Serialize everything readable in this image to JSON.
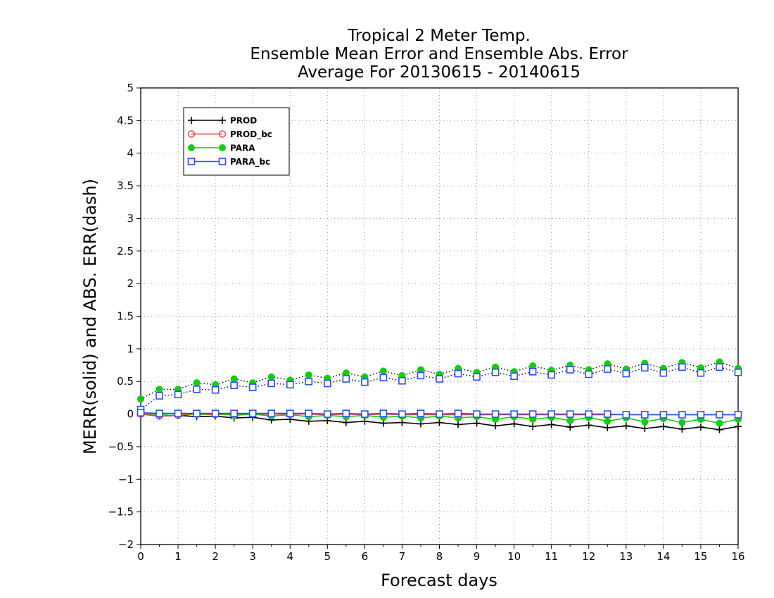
{
  "chart_data": {
    "type": "line",
    "title": [
      "Tropical 2 Meter Temp.",
      "Ensemble Mean Error and Ensemble Abs. Error",
      "Average For 20130615 - 20140615"
    ],
    "xlabel": "Forecast days",
    "ylabel": "MERR(solid) and ABS. ERR(dash)",
    "xlim": [
      0,
      16
    ],
    "ylim": [
      -2,
      5
    ],
    "x_ticks": [
      "0",
      "1",
      "2",
      "3",
      "4",
      "5",
      "6",
      "7",
      "8",
      "9",
      "10",
      "11",
      "12",
      "13",
      "14",
      "15",
      "16"
    ],
    "y_ticks": [
      "5",
      "4.5",
      "4",
      "3.5",
      "3",
      "2.5",
      "2",
      "1.5",
      "1",
      "0.5",
      "0",
      "−0.5",
      "−1",
      "−1.5",
      "−2"
    ],
    "y_tick_values": [
      5,
      4.5,
      4,
      3.5,
      3,
      2.5,
      2,
      1.5,
      1,
      0.5,
      0,
      -0.5,
      -1,
      -1.5,
      -2
    ],
    "grid": true,
    "legend_position": "top-left",
    "x": [
      0,
      0.5,
      1,
      1.5,
      2,
      2.5,
      3,
      3.5,
      4,
      4.5,
      5,
      5.5,
      6,
      6.5,
      7,
      7.5,
      8,
      8.5,
      9,
      9.5,
      10,
      10.5,
      11,
      11.5,
      12,
      12.5,
      13,
      13.5,
      14,
      14.5,
      15,
      15.5,
      16
    ],
    "series": [
      {
        "name": "PROD",
        "color": "#000000",
        "marker": "plus",
        "style": "solid",
        "values": [
          0.0,
          -0.03,
          -0.02,
          -0.04,
          -0.03,
          -0.06,
          -0.05,
          -0.09,
          -0.08,
          -0.11,
          -0.1,
          -0.13,
          -0.11,
          -0.14,
          -0.13,
          -0.15,
          -0.13,
          -0.16,
          -0.14,
          -0.18,
          -0.15,
          -0.19,
          -0.16,
          -0.2,
          -0.17,
          -0.21,
          -0.18,
          -0.22,
          -0.19,
          -0.23,
          -0.2,
          -0.24,
          -0.19
        ]
      },
      {
        "name": "PROD_bc",
        "color": "#e8413c",
        "marker": "circle",
        "style": "solid",
        "values": [
          0.0,
          -0.03,
          -0.02,
          0.0,
          -0.01,
          0.0,
          0.0,
          0.0,
          0.0,
          0.0,
          -0.01,
          0.0,
          -0.01,
          0.0,
          -0.01,
          -0.01,
          -0.01,
          -0.01,
          -0.01,
          -0.01,
          -0.01,
          -0.01,
          -0.01,
          -0.01,
          -0.01,
          -0.01,
          -0.01,
          -0.01,
          -0.01,
          -0.01,
          -0.01,
          -0.01,
          -0.01
        ]
      },
      {
        "name": "PARA",
        "color": "#11cc11",
        "marker": "dot",
        "style": "solid",
        "values": [
          0.02,
          -0.01,
          0.01,
          -0.01,
          0.01,
          -0.02,
          0.0,
          -0.03,
          -0.01,
          -0.04,
          -0.02,
          -0.04,
          -0.02,
          -0.05,
          -0.03,
          -0.06,
          -0.03,
          -0.06,
          -0.04,
          -0.08,
          -0.04,
          -0.08,
          -0.05,
          -0.1,
          -0.05,
          -0.11,
          -0.06,
          -0.12,
          -0.07,
          -0.13,
          -0.08,
          -0.14,
          -0.08
        ]
      },
      {
        "name": "PARA_bc",
        "color": "#2b4fe8",
        "marker": "square",
        "style": "solid",
        "values": [
          0.02,
          0.01,
          0.01,
          0.01,
          0.01,
          0.01,
          0.01,
          0.01,
          0.01,
          0.01,
          0.0,
          0.01,
          0.0,
          0.01,
          0.0,
          0.01,
          0.0,
          0.01,
          0.0,
          0.0,
          0.0,
          0.0,
          0.0,
          0.0,
          0.0,
          0.0,
          -0.01,
          -0.01,
          -0.01,
          -0.01,
          -0.01,
          -0.01,
          -0.01
        ]
      },
      {
        "name": "PARA",
        "color": "#11cc11",
        "marker": "dot",
        "style": "dotted",
        "values": [
          0.23,
          0.38,
          0.38,
          0.48,
          0.45,
          0.54,
          0.48,
          0.57,
          0.52,
          0.6,
          0.55,
          0.63,
          0.57,
          0.66,
          0.59,
          0.68,
          0.61,
          0.7,
          0.64,
          0.72,
          0.65,
          0.74,
          0.67,
          0.75,
          0.68,
          0.77,
          0.69,
          0.78,
          0.7,
          0.79,
          0.71,
          0.8,
          0.7
        ]
      },
      {
        "name": "PARA_bc",
        "color": "#2b4fe8",
        "marker": "square",
        "style": "dotted",
        "values": [
          0.07,
          0.28,
          0.3,
          0.38,
          0.37,
          0.44,
          0.41,
          0.47,
          0.45,
          0.5,
          0.47,
          0.54,
          0.49,
          0.56,
          0.51,
          0.59,
          0.54,
          0.62,
          0.57,
          0.64,
          0.58,
          0.65,
          0.6,
          0.68,
          0.61,
          0.69,
          0.62,
          0.71,
          0.63,
          0.72,
          0.63,
          0.72,
          0.64
        ]
      }
    ]
  }
}
